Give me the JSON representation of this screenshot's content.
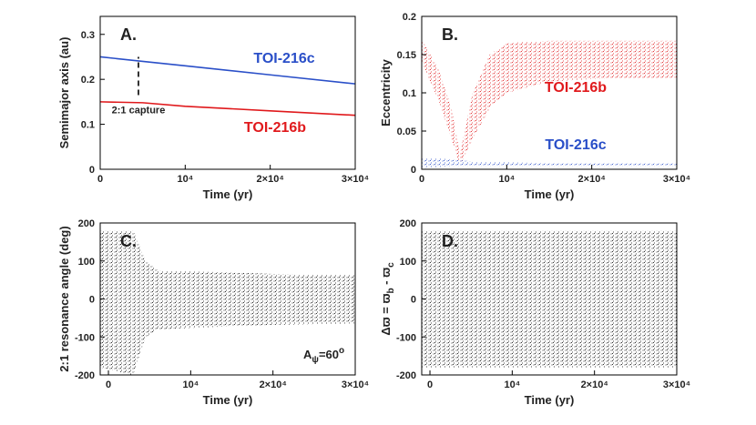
{
  "chart_data": [
    {
      "type": "line",
      "panel": "A.",
      "xlabel": "Time (yr)",
      "ylabel": {
        "parts": [
          "Semimajor axis (au)"
        ],
        "shift": [
          "base"
        ]
      },
      "xlim": [
        0,
        30000
      ],
      "ylim": [
        0,
        0.34
      ],
      "xticks": [
        0,
        {
          "value": 10000,
          "label": "10⁴"
        },
        {
          "value": 20000,
          "label": "2×10⁴"
        },
        {
          "value": 30000,
          "label": "3×10⁴"
        }
      ],
      "yticks": [
        0,
        0.1,
        0.2,
        0.3
      ],
      "x": [
        0,
        5000,
        10000,
        20000,
        30000
      ],
      "series": [
        {
          "name": "TOI-216c",
          "color": "#2a4fc8",
          "values": [
            0.25,
            0.24,
            0.23,
            0.21,
            0.19
          ]
        },
        {
          "name": "TOI-216b",
          "color": "#e0191c",
          "values": [
            0.15,
            0.148,
            0.14,
            0.13,
            0.12
          ]
        }
      ],
      "annotation": {
        "text": "2:1 capture",
        "x": 4500,
        "y": [
          0.165,
          0.25
        ]
      }
    },
    {
      "type": "band",
      "panel": "B.",
      "xlabel": "Time (yr)",
      "ylabel": {
        "parts": [
          "Eccentricity"
        ],
        "shift": [
          "base"
        ]
      },
      "xlim": [
        0,
        30000
      ],
      "ylim": [
        0,
        0.2
      ],
      "xticks": [
        0,
        {
          "value": 10000,
          "label": "10⁴"
        },
        {
          "value": 20000,
          "label": "2×10⁴"
        },
        {
          "value": 30000,
          "label": "3×10⁴"
        }
      ],
      "yticks": [
        0,
        0.05,
        0.1,
        0.15,
        0.2
      ],
      "x": [
        0,
        2000,
        3500,
        4500,
        6000,
        8000,
        10000,
        15000,
        20000,
        30000
      ],
      "series": [
        {
          "name": "TOI-216b",
          "color": "#e0191c",
          "values": [
            0.17,
            0.13,
            0.08,
            0.02,
            0.1,
            0.15,
            0.165,
            0.168,
            0.168,
            0.168
          ],
          "lower": [
            0.14,
            0.09,
            0.04,
            0.005,
            0.04,
            0.08,
            0.1,
            0.115,
            0.118,
            0.12
          ]
        },
        {
          "name": "TOI-216c",
          "color": "#2a4fc8",
          "values": [
            0.015,
            0.014,
            0.013,
            0.012,
            0.01,
            0.009,
            0.009,
            0.008,
            0.008,
            0.008
          ],
          "lower": [
            0.002,
            0.003,
            0.004,
            0.004,
            0.004,
            0.004,
            0.004,
            0.004,
            0.004,
            0.004
          ]
        }
      ]
    },
    {
      "type": "band",
      "panel": "C.",
      "xlabel": "Time (yr)",
      "ylabel": {
        "parts": [
          "2:1 resonance angle (deg)"
        ],
        "shift": [
          "base"
        ]
      },
      "xlim": [
        -1000,
        30000
      ],
      "ylim": [
        -200,
        200
      ],
      "xticks": [
        0,
        {
          "value": 10000,
          "label": "10⁴"
        },
        {
          "value": 20000,
          "label": "2×10⁴"
        },
        {
          "value": 30000,
          "label": "3×10⁴"
        }
      ],
      "yticks": [
        -200,
        -100,
        0,
        100,
        200
      ],
      "x": [
        -1000,
        3000,
        4500,
        6000,
        10000,
        15000,
        20000,
        30000
      ],
      "series": [
        {
          "name": "resonance angle",
          "color": "#111111",
          "values": [
            180,
            180,
            100,
            75,
            72,
            70,
            66,
            62
          ],
          "lower": [
            -180,
            -200,
            -100,
            -80,
            -76,
            -72,
            -68,
            -64
          ]
        }
      ],
      "annotation": {
        "parts": [
          "A",
          "ψ",
          "=60",
          "o"
        ],
        "shift": [
          "base",
          "sub",
          "base",
          "sup"
        ]
      }
    },
    {
      "type": "band",
      "panel": "D.",
      "xlabel": "Time (yr)",
      "ylabel": {
        "parts": [
          "Δϖ = ϖ",
          "b",
          " - ϖ",
          "c"
        ],
        "shift": [
          "base",
          "sub",
          "base",
          "sub"
        ]
      },
      "xlim": [
        -1000,
        30000
      ],
      "ylim": [
        -200,
        200
      ],
      "xticks": [
        0,
        {
          "value": 10000,
          "label": "10⁴"
        },
        {
          "value": 20000,
          "label": "2×10⁴"
        },
        {
          "value": 30000,
          "label": "3×10⁴"
        }
      ],
      "yticks": [
        -200,
        -100,
        0,
        100,
        200
      ],
      "x": [
        -1000,
        30000
      ],
      "series": [
        {
          "name": "apsidal difference",
          "color": "#111111",
          "values": [
            180,
            180
          ],
          "lower": [
            -180,
            -180
          ]
        }
      ]
    }
  ]
}
